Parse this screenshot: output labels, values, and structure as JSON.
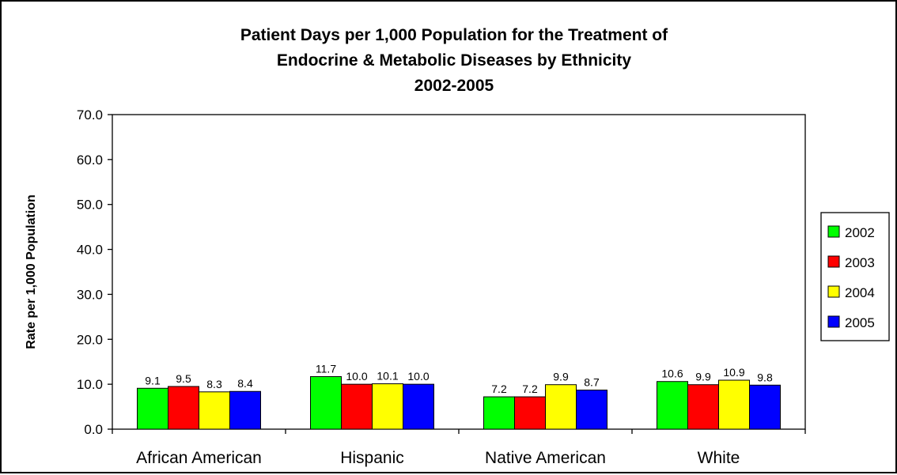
{
  "chart_data": {
    "type": "bar",
    "title": [
      "Patient Days per 1,000 Population for the Treatment of",
      "Endocrine & Metabolic Diseases by Ethnicity",
      "2002-2005"
    ],
    "xlabel": "",
    "ylabel": "Rate per 1,000 Population",
    "categories": [
      "African American",
      "Hispanic",
      "Native American",
      "White"
    ],
    "series": [
      {
        "name": "2002",
        "color": "#00ff00",
        "values": [
          9.1,
          11.7,
          7.2,
          10.6
        ],
        "labels": [
          "9.1",
          "11.7",
          "7.2",
          "10.6"
        ]
      },
      {
        "name": "2003",
        "color": "#ff0000",
        "values": [
          9.5,
          10.0,
          7.2,
          9.9
        ],
        "labels": [
          "9.5",
          "10.0",
          "7.2",
          "9.9"
        ]
      },
      {
        "name": "2004",
        "color": "#ffff00",
        "values": [
          8.3,
          10.1,
          9.9,
          10.9
        ],
        "labels": [
          "8.3",
          "10.1",
          "9.9",
          "10.9"
        ]
      },
      {
        "name": "2005",
        "color": "#0000ff",
        "values": [
          8.4,
          10.0,
          8.7,
          9.8
        ],
        "labels": [
          "8.4",
          "10.0",
          "8.7",
          "9.8"
        ]
      }
    ],
    "ylim": [
      0,
      70
    ],
    "yticks": [
      "0.0",
      "10.0",
      "20.0",
      "30.0",
      "40.0",
      "50.0",
      "60.0",
      "70.0"
    ],
    "grid": false,
    "legend_position": "right"
  }
}
